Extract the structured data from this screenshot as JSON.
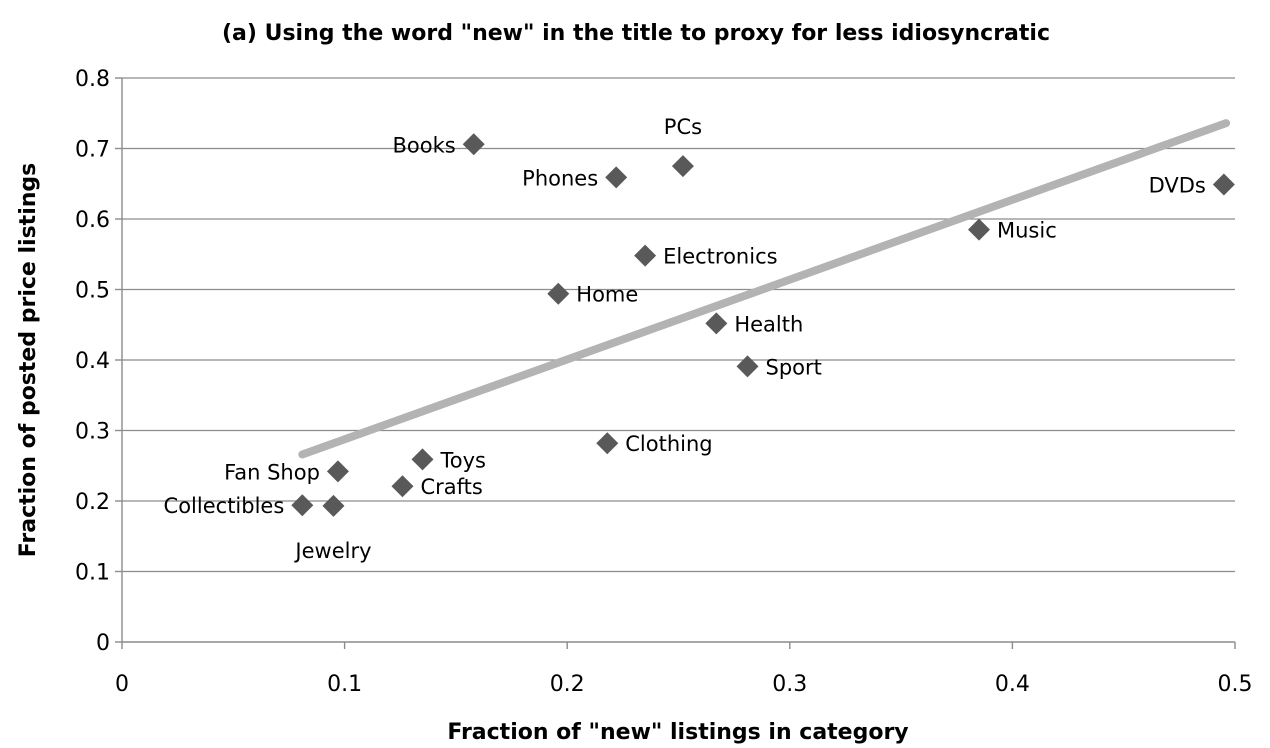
{
  "chart_data": {
    "type": "scatter",
    "title": "(a) Using the word \"new\" in the title to proxy for less idiosyncratic",
    "xlabel": "Fraction of \"new\" listings in category",
    "ylabel": "Fraction of posted price listings",
    "xlim": [
      0,
      0.5
    ],
    "ylim": [
      0,
      0.8
    ],
    "xticks": [
      "0",
      "0.1",
      "0.2",
      "0.3",
      "0.4",
      "0.5"
    ],
    "yticks": [
      "0",
      "0.1",
      "0.2",
      "0.3",
      "0.4",
      "0.5",
      "0.6",
      "0.7",
      "0.8"
    ],
    "grid": "horizontal",
    "marker_color": "#595959",
    "trendline_color": "#b3b3b3",
    "points": [
      {
        "label": "Books",
        "x": 0.158,
        "y": 0.706,
        "label_pos": "left"
      },
      {
        "label": "PCs",
        "x": 0.252,
        "y": 0.675,
        "label_pos": "above"
      },
      {
        "label": "Phones",
        "x": 0.222,
        "y": 0.659,
        "label_pos": "left"
      },
      {
        "label": "DVDs",
        "x": 0.495,
        "y": 0.649,
        "label_pos": "left"
      },
      {
        "label": "Music",
        "x": 0.385,
        "y": 0.585,
        "label_pos": "right"
      },
      {
        "label": "Electronics",
        "x": 0.235,
        "y": 0.548,
        "label_pos": "right"
      },
      {
        "label": "Home",
        "x": 0.196,
        "y": 0.494,
        "label_pos": "right"
      },
      {
        "label": "Health",
        "x": 0.267,
        "y": 0.452,
        "label_pos": "right"
      },
      {
        "label": "Sport",
        "x": 0.281,
        "y": 0.391,
        "label_pos": "right"
      },
      {
        "label": "Clothing",
        "x": 0.218,
        "y": 0.282,
        "label_pos": "right"
      },
      {
        "label": "Toys",
        "x": 0.135,
        "y": 0.259,
        "label_pos": "right"
      },
      {
        "label": "Fan Shop",
        "x": 0.097,
        "y": 0.242,
        "label_pos": "left"
      },
      {
        "label": "Crafts",
        "x": 0.126,
        "y": 0.221,
        "label_pos": "right"
      },
      {
        "label": "Collectibles",
        "x": 0.081,
        "y": 0.194,
        "label_pos": "left"
      },
      {
        "label": "Jewelry",
        "x": 0.095,
        "y": 0.193,
        "label_pos": "below"
      }
    ],
    "trendline": {
      "x": [
        0.081,
        0.496
      ],
      "y": [
        0.266,
        0.736
      ]
    }
  }
}
